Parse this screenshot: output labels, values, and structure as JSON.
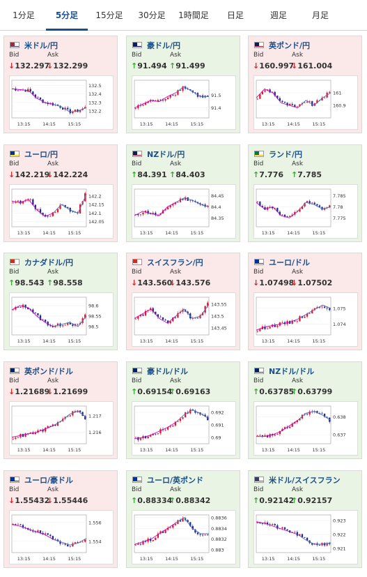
{
  "tabs": [
    "1分足",
    "5分足",
    "15分足",
    "30分足",
    "1時間足",
    "日足",
    "週足",
    "月足"
  ],
  "active_tab": 1,
  "labels": {
    "bid": "Bid",
    "ask": "Ask"
  },
  "colors": {
    "down_bg": "#fbe9e9",
    "up_bg": "#e9f4e5",
    "down_arrow": "#d9252a",
    "up_arrow": "#3aa635",
    "pair_link": "#1a4f8b",
    "ma_line": "#cc00cc",
    "ma_line2": "#2a9db5"
  },
  "arrows": {
    "up": "↑",
    "down": "↓"
  },
  "cards": [
    {
      "pair": "米ドル/円",
      "dir": "down",
      "bid": "132.297",
      "ask": "132.299",
      "flag": "flag-us-jp-icon",
      "x_ticks": [
        "13:15",
        "14:15",
        "15:15"
      ],
      "y_ticks": [
        "132.5",
        "132.4",
        "132.3",
        "132.2"
      ],
      "ylim": [
        132.12,
        132.56
      ],
      "trend": [
        132.46,
        132.45,
        132.44,
        132.35,
        132.3,
        132.28,
        132.25,
        132.19,
        132.2,
        132.24
      ]
    },
    {
      "pair": "豪ドル/円",
      "dir": "up",
      "bid": "91.494",
      "ask": "91.499",
      "flag": "flag-au-jp-icon",
      "x_ticks": [
        "13:15",
        "14:15",
        "15:15"
      ],
      "y_ticks": [
        "91.5",
        "91.4"
      ],
      "ylim": [
        91.32,
        91.62
      ],
      "trend": [
        91.4,
        91.43,
        91.46,
        91.45,
        91.49,
        91.52,
        91.57,
        91.53,
        91.49,
        91.49
      ]
    },
    {
      "pair": "英ポンド/円",
      "dir": "down",
      "bid": "160.997",
      "ask": "161.004",
      "flag": "flag-gb-jp-icon",
      "x_ticks": [
        "13:15",
        "14:15",
        "15:15"
      ],
      "y_ticks": [
        "161",
        "160.9"
      ],
      "ylim": [
        160.8,
        161.1
      ],
      "trend": [
        160.96,
        161.03,
        161.0,
        160.92,
        160.9,
        160.88,
        160.94,
        160.9,
        160.96,
        161.0
      ]
    },
    {
      "pair": "ユーロ/円",
      "dir": "down",
      "bid": "142.219",
      "ask": "142.224",
      "flag": "flag-eu-jp-icon",
      "x_ticks": [
        "13:15",
        "14:15",
        "15:15"
      ],
      "y_ticks": [
        "142.2",
        "142.15",
        "142.1",
        "142.05"
      ],
      "ylim": [
        142.02,
        142.24
      ],
      "trend": [
        142.17,
        142.16,
        142.18,
        142.12,
        142.08,
        142.1,
        142.15,
        142.12,
        142.1,
        142.21
      ]
    },
    {
      "pair": "NZドル/円",
      "dir": "up",
      "bid": "84.391",
      "ask": "84.403",
      "flag": "flag-nz-jp-icon",
      "x_ticks": [
        "13:15",
        "14:15",
        "15:15"
      ],
      "y_ticks": [
        "84.45",
        "84.4",
        "84.35"
      ],
      "ylim": [
        84.31,
        84.48
      ],
      "trend": [
        84.36,
        84.38,
        84.37,
        84.36,
        84.4,
        84.42,
        84.44,
        84.43,
        84.41,
        84.4
      ]
    },
    {
      "pair": "ランド/円",
      "dir": "up",
      "bid": "7.776",
      "ask": "7.785",
      "flag": "flag-za-jp-icon",
      "x_ticks": [
        "13:15",
        "14:15",
        "15:15"
      ],
      "y_ticks": [
        "7.785",
        "7.78",
        "7.775"
      ],
      "ylim": [
        7.771,
        7.788
      ],
      "trend": [
        7.782,
        7.779,
        7.78,
        7.776,
        7.775,
        7.778,
        7.782,
        7.781,
        7.779,
        7.78
      ]
    },
    {
      "pair": "カナダドル/円",
      "dir": "up",
      "bid": "98.543",
      "ask": "98.558",
      "flag": "flag-ca-jp-icon",
      "x_ticks": [
        "13:15",
        "14:15",
        "15:15"
      ],
      "y_ticks": [
        "98.6",
        "98.55",
        "98.5"
      ],
      "ylim": [
        98.46,
        98.64
      ],
      "trend": [
        98.58,
        98.6,
        98.59,
        98.55,
        98.52,
        98.5,
        98.51,
        98.52,
        98.5,
        98.55
      ]
    },
    {
      "pair": "スイスフラン/円",
      "dir": "down",
      "bid": "143.560",
      "ask": "143.576",
      "flag": "flag-ch-jp-icon",
      "x_ticks": [
        "13:15",
        "14:15",
        "15:15"
      ],
      "y_ticks": [
        "143.55",
        "143.5",
        "143.45"
      ],
      "ylim": [
        143.42,
        143.58
      ],
      "trend": [
        143.49,
        143.51,
        143.53,
        143.49,
        143.47,
        143.5,
        143.53,
        143.49,
        143.5,
        143.55
      ]
    },
    {
      "pair": "ユーロ/ドル",
      "dir": "down",
      "bid": "1.07498",
      "ask": "1.07502",
      "flag": "flag-eu-us-icon",
      "x_ticks": [
        "13:15",
        "14:15",
        "15:15"
      ],
      "y_ticks": [
        "1.075",
        "1.074"
      ],
      "ylim": [
        1.0733,
        1.0757
      ],
      "trend": [
        1.0736,
        1.0738,
        1.0739,
        1.074,
        1.0741,
        1.0743,
        1.0746,
        1.0749,
        1.0752,
        1.075
      ]
    },
    {
      "pair": "英ポンド/ドル",
      "dir": "down",
      "bid": "1.21689",
      "ask": "1.21699",
      "flag": "flag-gb-us-icon",
      "x_ticks": [
        "13:15",
        "14:15",
        "15:15"
      ],
      "y_ticks": [
        "1.217",
        "1.216"
      ],
      "ylim": [
        1.2153,
        1.2176
      ],
      "trend": [
        1.2157,
        1.2158,
        1.2159,
        1.216,
        1.2162,
        1.2164,
        1.2167,
        1.2171,
        1.2173,
        1.2169
      ]
    },
    {
      "pair": "豪ドル/ドル",
      "dir": "up",
      "bid": "0.69154",
      "ask": "0.69163",
      "flag": "flag-au-us-icon",
      "x_ticks": [
        "13:15",
        "14:15",
        "15:15"
      ],
      "y_ticks": [
        "0.692",
        "0.691",
        "0.69"
      ],
      "ylim": [
        0.6895,
        0.6925
      ],
      "trend": [
        0.6899,
        0.69,
        0.6902,
        0.6905,
        0.6908,
        0.6912,
        0.6918,
        0.6922,
        0.6919,
        0.6915
      ]
    },
    {
      "pair": "NZドル/ドル",
      "dir": "up",
      "bid": "0.63785",
      "ask": "0.63799",
      "flag": "flag-nz-us-icon",
      "x_ticks": [
        "13:15",
        "14:15",
        "15:15"
      ],
      "y_ticks": [
        "0.638",
        "0.637"
      ],
      "ylim": [
        0.6365,
        0.6386
      ],
      "trend": [
        0.6369,
        0.6369,
        0.637,
        0.6372,
        0.6375,
        0.6378,
        0.6382,
        0.6383,
        0.6381,
        0.6378
      ]
    },
    {
      "pair": "ユーロ/豪ドル",
      "dir": "down",
      "bid": "1.55432",
      "ask": "1.55446",
      "flag": "flag-eu-au-icon",
      "x_ticks": [
        "13:15",
        "14:15",
        "15:15"
      ],
      "y_ticks": [
        "1.556",
        "1.554"
      ],
      "ylim": [
        1.5528,
        1.5568
      ],
      "trend": [
        1.5558,
        1.5556,
        1.5553,
        1.555,
        1.5547,
        1.5542,
        1.5539,
        1.5536,
        1.5538,
        1.5543
      ]
    },
    {
      "pair": "ユーロ/英ポンド",
      "dir": "up",
      "bid": "0.88334",
      "ask": "0.88342",
      "flag": "flag-eu-gb-icon",
      "x_ticks": [
        "13:15",
        "14:15",
        "15:15"
      ],
      "y_ticks": [
        "0.8836",
        "0.8834",
        "0.8832",
        "0.883"
      ],
      "ylim": [
        0.88295,
        0.88365
      ],
      "trend": [
        0.8831,
        0.88315,
        0.8832,
        0.8833,
        0.8834,
        0.8835,
        0.8836,
        0.8834,
        0.8833,
        0.8833
      ]
    },
    {
      "pair": "米ドル/スイスフラン",
      "dir": "up",
      "bid": "0.92142",
      "ask": "0.92157",
      "flag": "flag-us-ch-icon",
      "x_ticks": [
        "13:15",
        "14:15",
        "15:15"
      ],
      "y_ticks": [
        "0.923",
        "0.922",
        "0.921"
      ],
      "ylim": [
        0.9207,
        0.9234
      ],
      "trend": [
        0.9229,
        0.9228,
        0.9226,
        0.9224,
        0.9222,
        0.922,
        0.9216,
        0.9213,
        0.9213,
        0.9214
      ]
    }
  ]
}
